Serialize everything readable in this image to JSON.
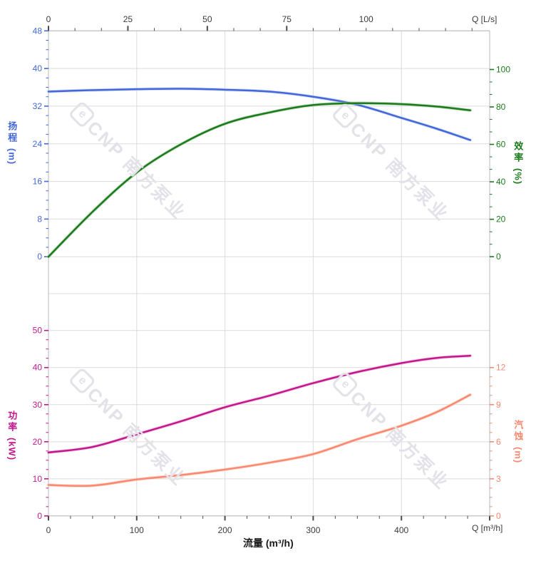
{
  "chart_data": {
    "type": "line",
    "description": "Pump performance curves: head & efficiency (top), power & NPSH (bottom) vs flow",
    "grid": true,
    "x_axis_bottom": {
      "title": "流量 (m³/h)",
      "unit": "Q [m³/h]",
      "min": 0,
      "max": 500,
      "ticks": [
        0,
        100,
        200,
        300,
        400
      ]
    },
    "x_axis_top": {
      "unit": "Q [L/s]",
      "min": 0,
      "max": 139,
      "ticks": [
        0,
        25,
        50,
        75,
        100
      ]
    },
    "panels": [
      {
        "name": "head-efficiency",
        "left_axis": {
          "label": "扬程",
          "unit": "(m)",
          "color": "#4268d8",
          "min": 0,
          "max": 48,
          "ticks": [
            48,
            40,
            32,
            24,
            16,
            8,
            0
          ]
        },
        "right_axis": {
          "label": "效率",
          "unit": "(%)",
          "color": "#1b7a1b",
          "min": 0,
          "max": 100,
          "ticks": [
            100,
            80,
            60,
            40,
            20,
            0
          ]
        },
        "series": [
          {
            "name": "head",
            "axis_scale": "head",
            "color": "#4268d8",
            "halo": "#b9c8f2",
            "points": [
              [
                0,
                35.1
              ],
              [
                50,
                35.4
              ],
              [
                100,
                35.6
              ],
              [
                150,
                35.7
              ],
              [
                200,
                35.5
              ],
              [
                250,
                35.1
              ],
              [
                300,
                34.0
              ],
              [
                350,
                32.3
              ],
              [
                400,
                29.5
              ],
              [
                440,
                27.2
              ],
              [
                478,
                24.8
              ]
            ]
          },
          {
            "name": "efficiency",
            "axis_scale": "eff",
            "color": "#1b7a1b",
            "halo": "#9cc89c",
            "points": [
              [
                0,
                0
              ],
              [
                50,
                24
              ],
              [
                100,
                45
              ],
              [
                150,
                60
              ],
              [
                200,
                71
              ],
              [
                250,
                77
              ],
              [
                300,
                81
              ],
              [
                350,
                82
              ],
              [
                400,
                81.5
              ],
              [
                440,
                80.2
              ],
              [
                478,
                78.2
              ]
            ]
          }
        ]
      },
      {
        "name": "power-npsh",
        "left_axis": {
          "label": "功率",
          "unit": "(kW)",
          "color": "#c2188c",
          "min": 0,
          "max": 50,
          "ticks": [
            50,
            40,
            30,
            20,
            10,
            0
          ]
        },
        "right_axis": {
          "label": "汽蚀",
          "unit": "(m)",
          "color": "#f9886e",
          "min": 0,
          "max": 15,
          "ticks": [
            12,
            9,
            6,
            3,
            0
          ]
        },
        "series": [
          {
            "name": "power",
            "axis_scale": "power",
            "color": "#c2188c",
            "halo": "#e8a7d4",
            "points": [
              [
                0,
                17.1
              ],
              [
                50,
                18.6
              ],
              [
                100,
                22.0
              ],
              [
                150,
                25.5
              ],
              [
                200,
                29.3
              ],
              [
                250,
                32.4
              ],
              [
                300,
                35.8
              ],
              [
                350,
                38.8
              ],
              [
                400,
                41.2
              ],
              [
                440,
                42.6
              ],
              [
                478,
                43.2
              ]
            ]
          },
          {
            "name": "npsh",
            "axis_scale": "npsh",
            "color": "#f9886e",
            "halo": "#fcc9ba",
            "points": [
              [
                0,
                2.5
              ],
              [
                50,
                2.45
              ],
              [
                100,
                2.95
              ],
              [
                150,
                3.3
              ],
              [
                200,
                3.75
              ],
              [
                250,
                4.3
              ],
              [
                300,
                5.0
              ],
              [
                350,
                6.2
              ],
              [
                400,
                7.3
              ],
              [
                440,
                8.4
              ],
              [
                478,
                9.8
              ]
            ]
          }
        ]
      }
    ],
    "colors": {
      "grid": "#dcdcdc",
      "border": "#b8b8b8",
      "x_tick": "#4b4b4b",
      "x_tick_text": "#3b3b3b"
    }
  },
  "watermark": {
    "logo": "e",
    "text": "CNP 南方泵业"
  }
}
